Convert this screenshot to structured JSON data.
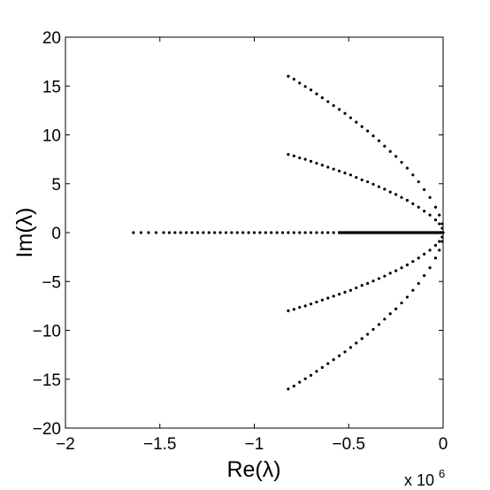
{
  "chart_data": {
    "type": "scatter",
    "title": "",
    "xlabel": "Re(λ)",
    "ylabel": "Im(λ)",
    "x_multiplier_label": {
      "base": "x 10",
      "exponent": "6"
    },
    "xlim": [
      -2,
      0
    ],
    "ylim": [
      -20,
      20
    ],
    "xticks": [
      -2,
      -1.5,
      -1,
      -0.5,
      0
    ],
    "xtick_labels": [
      "−2",
      "−1.5",
      "−1",
      "−0.5",
      "0"
    ],
    "yticks": [
      -20,
      -15,
      -10,
      -5,
      0,
      5,
      10,
      15,
      20
    ],
    "ytick_labels": [
      "−20",
      "−15",
      "−10",
      "−5",
      "0",
      "5",
      "10",
      "15",
      "20"
    ],
    "grid": false,
    "legend": "none",
    "marker_color": "#000000",
    "series": [
      {
        "x": [
          -1.64,
          -1.6,
          -1.56,
          -1.52,
          -1.48,
          -1.45,
          -1.42,
          -1.39,
          -1.36,
          -1.33,
          -1.3,
          -1.27,
          -1.24,
          -1.21,
          -1.18,
          -1.15,
          -1.12,
          -1.09,
          -1.06,
          -1.03,
          -1.0,
          -0.97,
          -0.94,
          -0.91,
          -0.88,
          -0.85,
          -0.82,
          -0.79,
          -0.76,
          -0.73,
          -0.7,
          -0.67,
          -0.64,
          -0.61,
          -0.58,
          -0.55,
          -0.52,
          -0.49,
          -0.46,
          -0.43,
          -0.4,
          -0.37,
          -0.34,
          -0.31,
          -0.28,
          -0.25,
          -0.22,
          -0.19,
          -0.16,
          -0.13,
          -0.1,
          -0.07,
          -0.04,
          -0.01
        ],
        "y": [
          0,
          0,
          0,
          0,
          0,
          0,
          0,
          0,
          0,
          0,
          0,
          0,
          0,
          0,
          0,
          0,
          0,
          0,
          0,
          0,
          0,
          0,
          0,
          0,
          0,
          0,
          0,
          0,
          0,
          0,
          0,
          0,
          0,
          0,
          0,
          0,
          0,
          0,
          0,
          0,
          0,
          0,
          0,
          0,
          0,
          0,
          0,
          0,
          0,
          0,
          0,
          0,
          0,
          0
        ]
      },
      {
        "x": [
          -0.82,
          -0.79,
          -0.76,
          -0.73,
          -0.7,
          -0.67,
          -0.64,
          -0.61,
          -0.58,
          -0.55,
          -0.52,
          -0.49,
          -0.46,
          -0.43,
          -0.4,
          -0.37,
          -0.34,
          -0.31,
          -0.28,
          -0.25,
          -0.22,
          -0.19,
          -0.16,
          -0.13,
          -0.1,
          -0.07,
          -0.04,
          -0.02,
          -0.005
        ],
        "y": [
          16.0,
          15.7,
          15.3,
          14.95,
          14.6,
          14.2,
          13.8,
          13.4,
          13.0,
          12.6,
          12.2,
          11.75,
          11.3,
          10.85,
          10.4,
          9.9,
          9.4,
          8.85,
          8.3,
          7.8,
          7.2,
          6.6,
          5.9,
          5.2,
          4.4,
          3.6,
          2.6,
          1.8,
          0.9
        ]
      },
      {
        "x": [
          -0.82,
          -0.79,
          -0.76,
          -0.73,
          -0.7,
          -0.67,
          -0.64,
          -0.61,
          -0.58,
          -0.55,
          -0.52,
          -0.49,
          -0.46,
          -0.43,
          -0.4,
          -0.37,
          -0.34,
          -0.31,
          -0.28,
          -0.25,
          -0.22,
          -0.19,
          -0.16,
          -0.13,
          -0.1,
          -0.07,
          -0.04,
          -0.02,
          -0.005
        ],
        "y": [
          8.0,
          7.85,
          7.65,
          7.5,
          7.3,
          7.1,
          6.9,
          6.7,
          6.5,
          6.3,
          6.1,
          5.9,
          5.65,
          5.4,
          5.2,
          4.95,
          4.7,
          4.45,
          4.15,
          3.9,
          3.6,
          3.3,
          2.95,
          2.6,
          2.2,
          1.8,
          1.3,
          0.9,
          0.45
        ]
      },
      {
        "x": [
          -0.82,
          -0.79,
          -0.76,
          -0.73,
          -0.7,
          -0.67,
          -0.64,
          -0.61,
          -0.58,
          -0.55,
          -0.52,
          -0.49,
          -0.46,
          -0.43,
          -0.4,
          -0.37,
          -0.34,
          -0.31,
          -0.28,
          -0.25,
          -0.22,
          -0.19,
          -0.16,
          -0.13,
          -0.1,
          -0.07,
          -0.04,
          -0.02,
          -0.005
        ],
        "y": [
          -8.0,
          -7.85,
          -7.65,
          -7.5,
          -7.3,
          -7.1,
          -6.9,
          -6.7,
          -6.5,
          -6.3,
          -6.1,
          -5.9,
          -5.65,
          -5.4,
          -5.2,
          -4.95,
          -4.7,
          -4.45,
          -4.15,
          -3.9,
          -3.6,
          -3.3,
          -2.95,
          -2.6,
          -2.2,
          -1.8,
          -1.3,
          -0.9,
          -0.45
        ]
      },
      {
        "x": [
          -0.82,
          -0.79,
          -0.76,
          -0.73,
          -0.7,
          -0.67,
          -0.64,
          -0.61,
          -0.58,
          -0.55,
          -0.52,
          -0.49,
          -0.46,
          -0.43,
          -0.4,
          -0.37,
          -0.34,
          -0.31,
          -0.28,
          -0.25,
          -0.22,
          -0.19,
          -0.16,
          -0.13,
          -0.1,
          -0.07,
          -0.04,
          -0.02,
          -0.005
        ],
        "y": [
          -16.0,
          -15.7,
          -15.3,
          -14.95,
          -14.6,
          -14.2,
          -13.8,
          -13.4,
          -13.0,
          -12.6,
          -12.2,
          -11.75,
          -11.3,
          -10.85,
          -10.4,
          -9.9,
          -9.4,
          -8.85,
          -8.3,
          -7.8,
          -7.2,
          -6.6,
          -5.9,
          -5.2,
          -4.4,
          -3.6,
          -2.6,
          -1.8,
          -0.9
        ]
      }
    ]
  }
}
